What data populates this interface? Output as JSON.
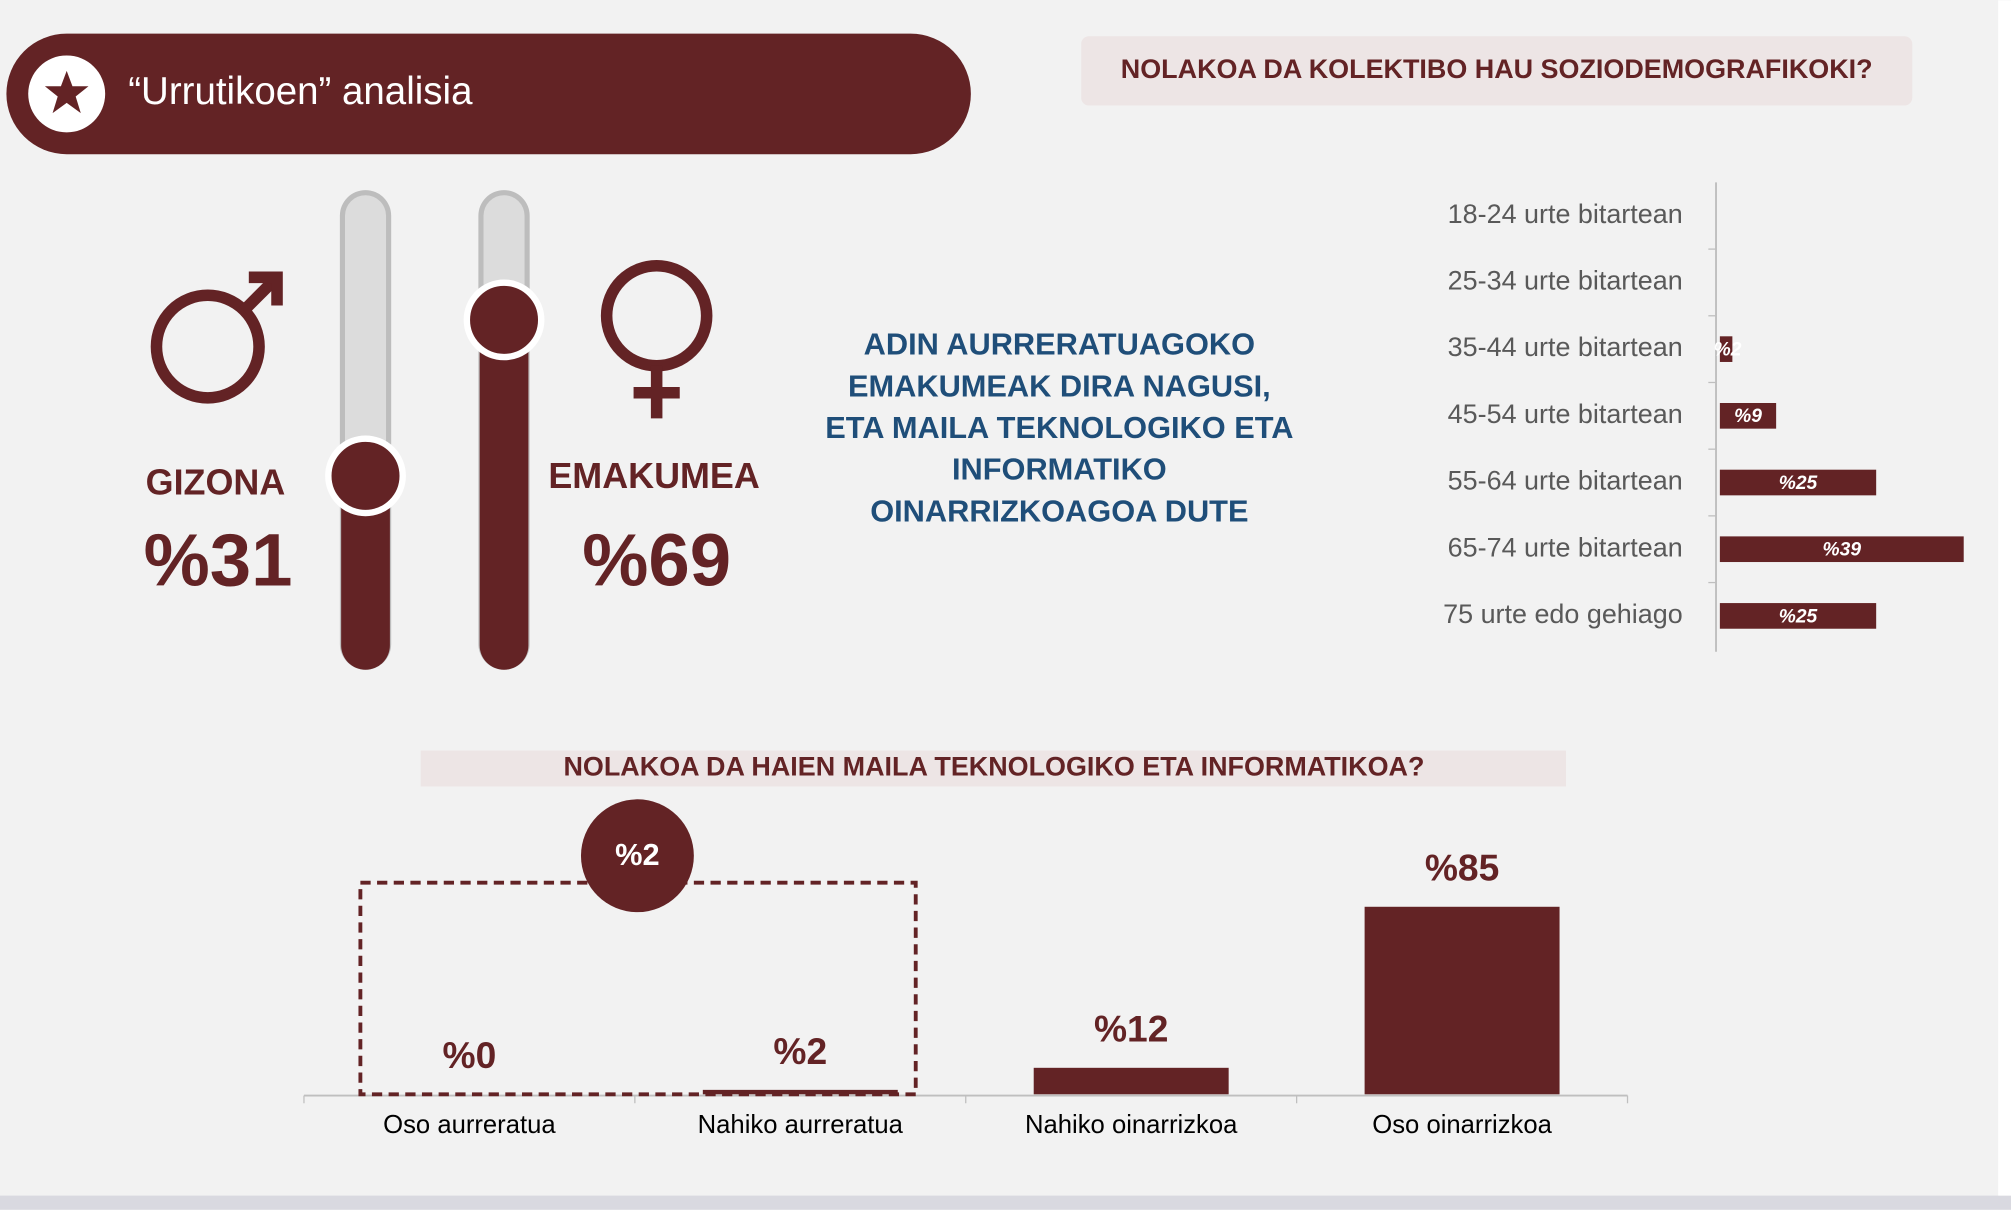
{
  "header": {
    "title": "“Urrutikoen” analisia"
  },
  "subtitle": "NOLAKOA DA KOLEKTIBO HAU SOZIODEMOGRAFIKOKI?",
  "gender": [
    {
      "label": "GIZONA",
      "value": 31,
      "value_label": "%31"
    },
    {
      "label": "EMAKUMEA",
      "value": 69,
      "value_label": "%69"
    }
  ],
  "summary": [
    "ADIN AURRERATUAGOKO",
    "EMAKUMEAK DIRA NAGUSI,",
    "ETA MAILA TEKNOLOGIKO ETA",
    "INFORMATIKO",
    "OINARRIZKOAGOA DUTE"
  ],
  "chart_data": [
    {
      "type": "hbar",
      "color": "#632325",
      "categories": [
        "18-24 urte bitartean",
        "25-34 urte bitartean",
        "35-44 urte bitartean",
        "45-54 urte bitartean",
        "55-64 urte bitartean",
        "65-74 urte bitartean",
        "75 urte edo gehiago"
      ],
      "values": [
        0,
        0,
        2,
        9,
        25,
        39,
        25
      ],
      "value_labels": [
        null,
        null,
        "%2",
        "%9",
        "%25",
        "%39",
        "%25"
      ],
      "xlim": [
        0,
        40
      ]
    },
    {
      "type": "bar",
      "color": "#632325",
      "title": "NOLAKOA DA HAIEN MAILA TEKNOLOGIKO ETA INFORMATIKOA?",
      "categories": [
        "Oso aurreratua",
        "Nahiko aurreratua",
        "Nahiko oinarrizkoa",
        "Oso oinarrizkoa"
      ],
      "values": [
        0,
        2,
        12,
        85
      ],
      "value_labels": [
        "%0",
        "%2",
        "%12",
        "%85"
      ],
      "ylim": [
        0,
        100
      ],
      "annotation": "%2"
    }
  ]
}
